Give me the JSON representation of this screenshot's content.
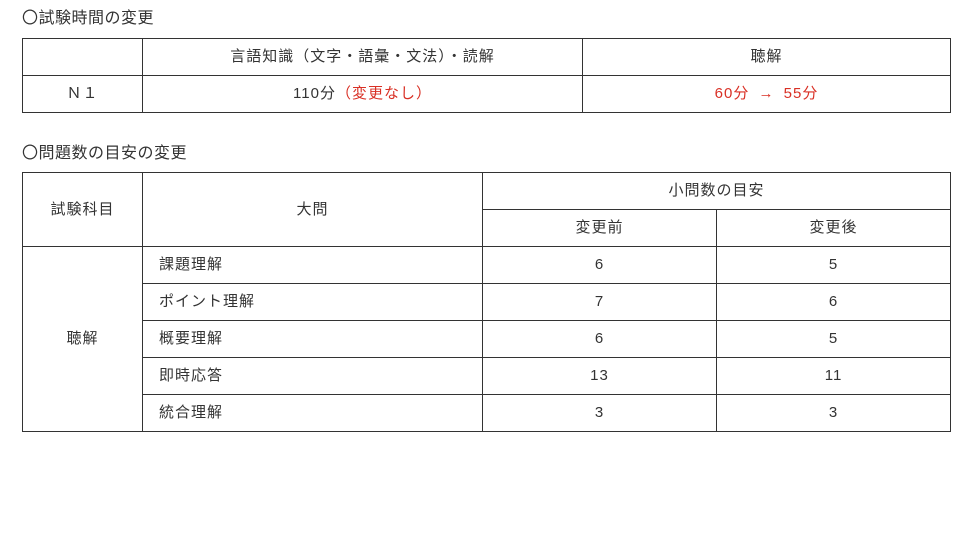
{
  "colors": {
    "text": "#333333",
    "highlight": "#d93025",
    "border": "#333333",
    "background": "#ffffff"
  },
  "section1": {
    "title": "〇試験時間の変更",
    "headers": {
      "blank": "",
      "col_lang": "言語知識（文字・語彙・文法）・読解",
      "col_listening": "聴解"
    },
    "row": {
      "level": "Ｎ１",
      "lang_time_base": "110分",
      "lang_time_note": "（変更なし）",
      "listen_before": "60分",
      "arrow": "→",
      "listen_after": "55分"
    }
  },
  "section2": {
    "title": "〇問題数の目安の変更",
    "headers": {
      "subject": "試験科目",
      "section": "大問",
      "count_group": "小問数の目安",
      "before": "変更前",
      "after": "変更後"
    },
    "subject": "聴解",
    "rows": [
      {
        "name": "課題理解",
        "before": "6",
        "after": "5"
      },
      {
        "name": "ポイント理解",
        "before": "7",
        "after": "6"
      },
      {
        "name": "概要理解",
        "before": "6",
        "after": "5"
      },
      {
        "name": "即時応答",
        "before": "13",
        "after": "11"
      },
      {
        "name": "統合理解",
        "before": "3",
        "after": "3"
      }
    ]
  }
}
